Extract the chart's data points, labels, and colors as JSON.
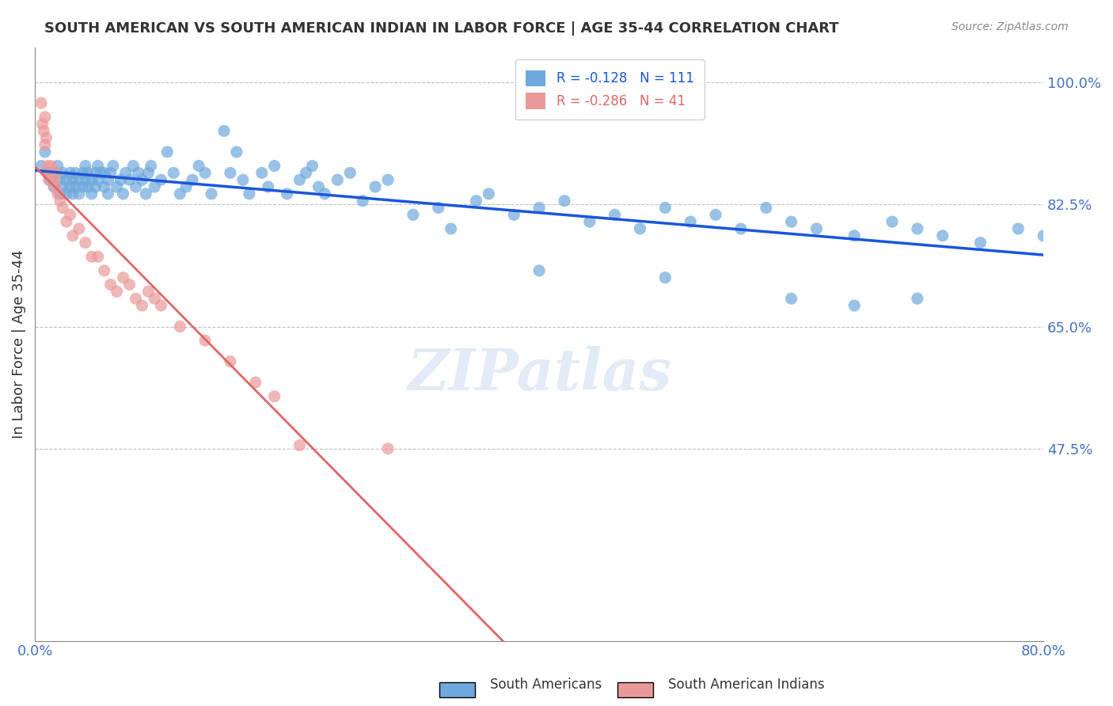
{
  "title": "SOUTH AMERICAN VS SOUTH AMERICAN INDIAN IN LABOR FORCE | AGE 35-44 CORRELATION CHART",
  "source": "Source: ZipAtlas.com",
  "xlabel": "",
  "ylabel": "In Labor Force | Age 35-44",
  "xlim": [
    0.0,
    0.8
  ],
  "ylim": [
    0.2,
    1.05
  ],
  "yticks": [
    0.475,
    0.65,
    0.825,
    1.0
  ],
  "ytick_labels": [
    "47.5%",
    "65.0%",
    "82.5%",
    "100.0%"
  ],
  "xticks": [
    0.0,
    0.1,
    0.2,
    0.3,
    0.4,
    0.5,
    0.6,
    0.7,
    0.8
  ],
  "xtick_labels": [
    "0.0%",
    "",
    "",
    "",
    "",
    "",
    "",
    "",
    "80.0%"
  ],
  "blue_R": -0.128,
  "blue_N": 111,
  "pink_R": -0.286,
  "pink_N": 41,
  "blue_color": "#6fa8dc",
  "pink_color": "#ea9999",
  "blue_line_color": "#1a56db",
  "pink_line_color": "#e06666",
  "title_color": "#222222",
  "axis_color": "#4472c4",
  "watermark": "ZIPatlas",
  "legend_label_blue": "South Americans",
  "legend_label_pink": "South American Indians",
  "blue_scatter_x": [
    0.005,
    0.008,
    0.01,
    0.012,
    0.015,
    0.016,
    0.018,
    0.02,
    0.02,
    0.022,
    0.022,
    0.025,
    0.025,
    0.028,
    0.028,
    0.03,
    0.03,
    0.032,
    0.032,
    0.035,
    0.035,
    0.038,
    0.038,
    0.04,
    0.04,
    0.042,
    0.042,
    0.045,
    0.045,
    0.048,
    0.048,
    0.05,
    0.05,
    0.052,
    0.055,
    0.055,
    0.058,
    0.058,
    0.06,
    0.062,
    0.065,
    0.068,
    0.07,
    0.072,
    0.075,
    0.078,
    0.08,
    0.082,
    0.085,
    0.088,
    0.09,
    0.092,
    0.095,
    0.1,
    0.105,
    0.11,
    0.115,
    0.12,
    0.125,
    0.13,
    0.135,
    0.14,
    0.15,
    0.155,
    0.16,
    0.165,
    0.17,
    0.18,
    0.185,
    0.19,
    0.2,
    0.21,
    0.215,
    0.22,
    0.225,
    0.23,
    0.24,
    0.25,
    0.26,
    0.27,
    0.28,
    0.3,
    0.32,
    0.33,
    0.35,
    0.36,
    0.38,
    0.4,
    0.42,
    0.44,
    0.46,
    0.48,
    0.5,
    0.52,
    0.54,
    0.56,
    0.58,
    0.6,
    0.62,
    0.65,
    0.68,
    0.7,
    0.72,
    0.75,
    0.78,
    0.8,
    0.4,
    0.5,
    0.6,
    0.65,
    0.7
  ],
  "blue_scatter_y": [
    0.88,
    0.9,
    0.87,
    0.86,
    0.85,
    0.87,
    0.88,
    0.86,
    0.84,
    0.87,
    0.85,
    0.84,
    0.86,
    0.85,
    0.87,
    0.86,
    0.84,
    0.85,
    0.87,
    0.86,
    0.84,
    0.87,
    0.85,
    0.86,
    0.88,
    0.87,
    0.85,
    0.86,
    0.84,
    0.87,
    0.85,
    0.86,
    0.88,
    0.87,
    0.85,
    0.87,
    0.86,
    0.84,
    0.87,
    0.88,
    0.85,
    0.86,
    0.84,
    0.87,
    0.86,
    0.88,
    0.85,
    0.87,
    0.86,
    0.84,
    0.87,
    0.88,
    0.85,
    0.86,
    0.9,
    0.87,
    0.84,
    0.85,
    0.86,
    0.88,
    0.87,
    0.84,
    0.93,
    0.87,
    0.9,
    0.86,
    0.84,
    0.87,
    0.85,
    0.88,
    0.84,
    0.86,
    0.87,
    0.88,
    0.85,
    0.84,
    0.86,
    0.87,
    0.83,
    0.85,
    0.86,
    0.81,
    0.82,
    0.79,
    0.83,
    0.84,
    0.81,
    0.82,
    0.83,
    0.8,
    0.81,
    0.79,
    0.82,
    0.8,
    0.81,
    0.79,
    0.82,
    0.8,
    0.79,
    0.78,
    0.8,
    0.79,
    0.78,
    0.77,
    0.79,
    0.78,
    0.73,
    0.72,
    0.69,
    0.68,
    0.69
  ],
  "pink_scatter_x": [
    0.005,
    0.006,
    0.007,
    0.008,
    0.008,
    0.009,
    0.01,
    0.01,
    0.011,
    0.012,
    0.013,
    0.015,
    0.016,
    0.017,
    0.018,
    0.02,
    0.022,
    0.025,
    0.028,
    0.03,
    0.035,
    0.04,
    0.045,
    0.05,
    0.055,
    0.06,
    0.065,
    0.07,
    0.075,
    0.08,
    0.085,
    0.09,
    0.095,
    0.1,
    0.115,
    0.135,
    0.155,
    0.175,
    0.19,
    0.21,
    0.28
  ],
  "pink_scatter_y": [
    0.97,
    0.94,
    0.93,
    0.91,
    0.95,
    0.92,
    0.87,
    0.88,
    0.86,
    0.87,
    0.88,
    0.86,
    0.85,
    0.87,
    0.84,
    0.83,
    0.82,
    0.8,
    0.81,
    0.78,
    0.79,
    0.77,
    0.75,
    0.75,
    0.73,
    0.71,
    0.7,
    0.72,
    0.71,
    0.69,
    0.68,
    0.7,
    0.69,
    0.68,
    0.65,
    0.63,
    0.6,
    0.57,
    0.55,
    0.48,
    0.475
  ]
}
